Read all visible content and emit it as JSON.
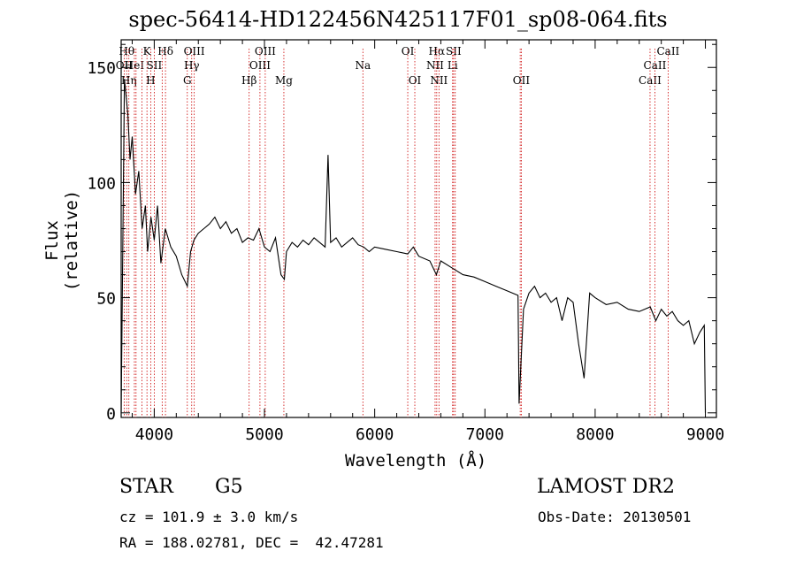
{
  "header": {
    "title": "spec-56414-HD122456N425117F01_sp08-064.fits"
  },
  "info": {
    "class": "STAR",
    "subclass": "G5",
    "survey": "LAMOST DR2",
    "cz": "cz = 101.9 ± 3.0 km/s",
    "obs_date": "Obs-Date: 20130501",
    "radec": "RA = 188.02781, DEC =  42.47281"
  },
  "chart_data": {
    "type": "line",
    "xlabel": "Wavelength (Å)",
    "ylabel": "Flux (relative)",
    "xlim": [
      3700,
      9100
    ],
    "ylim": [
      -2,
      162
    ],
    "xticks": [
      4000,
      5000,
      6000,
      7000,
      8000,
      9000
    ],
    "yticks": [
      0,
      50,
      100,
      150
    ],
    "line_color": "#000000",
    "marker_color": "#cc0000",
    "series": [
      {
        "x": [
          3700,
          3730,
          3760,
          3780,
          3800,
          3830,
          3860,
          3890,
          3920,
          3940,
          3970,
          4000,
          4030,
          4060,
          4100,
          4150,
          4200,
          4250,
          4300,
          4330,
          4360,
          4400,
          4450,
          4500,
          4550,
          4600,
          4650,
          4700,
          4750,
          4800,
          4850,
          4900,
          4950,
          5000,
          5050,
          5100,
          5150,
          5180,
          5200,
          5250,
          5300,
          5350,
          5400,
          5450,
          5500,
          5550,
          5577,
          5600,
          5650,
          5700,
          5750,
          5800,
          5850,
          5900,
          5950,
          6000,
          6100,
          6200,
          6300,
          6350,
          6400,
          6500,
          6560,
          6600,
          6700,
          6800,
          6900,
          7000,
          7100,
          7200,
          7300,
          7310,
          7350,
          7400,
          7450,
          7500,
          7550,
          7600,
          7650,
          7700,
          7750,
          7800,
          7850,
          7900,
          7950,
          8000,
          8100,
          8200,
          8300,
          8400,
          8500,
          8550,
          8600,
          8650,
          8700,
          8750,
          8800,
          8850,
          8900,
          8950,
          8990,
          9000
        ],
        "y": [
          0,
          145,
          130,
          110,
          120,
          95,
          105,
          80,
          90,
          70,
          85,
          75,
          90,
          65,
          80,
          72,
          68,
          60,
          55,
          70,
          75,
          78,
          80,
          82,
          85,
          80,
          83,
          78,
          80,
          74,
          76,
          75,
          80,
          72,
          70,
          76,
          60,
          58,
          70,
          74,
          72,
          75,
          73,
          76,
          74,
          72,
          112,
          74,
          76,
          72,
          74,
          76,
          73,
          72,
          70,
          72,
          71,
          70,
          69,
          72,
          68,
          66,
          60,
          66,
          63,
          60,
          59,
          57,
          55,
          53,
          51,
          4,
          45,
          52,
          55,
          50,
          52,
          48,
          50,
          40,
          50,
          48,
          30,
          15,
          52,
          50,
          47,
          48,
          45,
          44,
          46,
          40,
          45,
          42,
          44,
          40,
          38,
          40,
          30,
          35,
          38,
          0
        ]
      }
    ],
    "line_markers": [
      {
        "x": 3727,
        "label": "OII",
        "row": 2
      },
      {
        "x": 3750,
        "label": "Hθ",
        "row": 1
      },
      {
        "x": 3770,
        "label": "Hη",
        "row": 3
      },
      {
        "x": 3820,
        "label": "HeI",
        "row": 2
      },
      {
        "x": 3835,
        "label": "",
        "row": 0
      },
      {
        "x": 3889,
        "label": "",
        "row": 0
      },
      {
        "x": 3934,
        "label": "K",
        "row": 1
      },
      {
        "x": 3968,
        "label": "H",
        "row": 3
      },
      {
        "x": 4000,
        "label": "SII",
        "row": 2
      },
      {
        "x": 4072,
        "label": "",
        "row": 0
      },
      {
        "x": 4102,
        "label": "Hδ",
        "row": 1
      },
      {
        "x": 4300,
        "label": "G",
        "row": 3
      },
      {
        "x": 4340,
        "label": "Hγ",
        "row": 2
      },
      {
        "x": 4363,
        "label": "OIII",
        "row": 1
      },
      {
        "x": 4861,
        "label": "Hβ",
        "row": 3
      },
      {
        "x": 4959,
        "label": "OIII",
        "row": 2
      },
      {
        "x": 5007,
        "label": "OIII",
        "row": 1
      },
      {
        "x": 5176,
        "label": "Mg",
        "row": 3
      },
      {
        "x": 5893,
        "label": "Na",
        "row": 2
      },
      {
        "x": 6300,
        "label": "OI",
        "row": 1
      },
      {
        "x": 6364,
        "label": "OI",
        "row": 3
      },
      {
        "x": 6548,
        "label": "NII",
        "row": 2
      },
      {
        "x": 6563,
        "label": "Hα",
        "row": 1
      },
      {
        "x": 6583,
        "label": "NII",
        "row": 3
      },
      {
        "x": 6707,
        "label": "Li",
        "row": 2
      },
      {
        "x": 6716,
        "label": "SII",
        "row": 1
      },
      {
        "x": 6731,
        "label": "",
        "row": 0
      },
      {
        "x": 7320,
        "label": "",
        "row": 0
      },
      {
        "x": 7330,
        "label": "OII",
        "row": 3
      },
      {
        "x": 8498,
        "label": "CaII",
        "row": 3
      },
      {
        "x": 8542,
        "label": "CaII",
        "row": 2
      },
      {
        "x": 8662,
        "label": "CaII",
        "row": 1
      }
    ]
  }
}
